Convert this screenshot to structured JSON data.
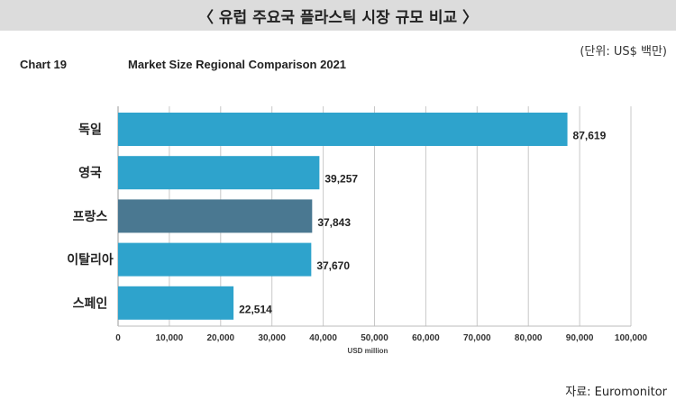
{
  "header": {
    "title": "〈 유럽 주요국 플라스틱 시장 규모 비교 〉"
  },
  "unit_note": "(단위: US$ 백만)",
  "chart_label": "Chart 19",
  "source": "자료: Euromonitor",
  "colors": {
    "bar": "#2ea3cc",
    "bar_highlight": "#4a7891",
    "header_bg": "#dcdcdc",
    "grid": "#c8c8c8"
  },
  "chart_data": {
    "type": "bar",
    "orientation": "horizontal",
    "title": "Market Size Regional Comparison 2021",
    "xlabel": "USD million",
    "ylabel": "",
    "xlim": [
      0,
      100000
    ],
    "grid": true,
    "categories": [
      "독일",
      "영국",
      "프랑스",
      "이탈리아",
      "스페인"
    ],
    "values": [
      87619,
      39257,
      37843,
      37670,
      22514
    ],
    "value_labels": [
      "87,619",
      "39,257",
      "37,843",
      "37,670",
      "22,514"
    ],
    "highlight_index": 2,
    "ticks": [
      0,
      10000,
      20000,
      30000,
      40000,
      50000,
      60000,
      70000,
      80000,
      90000,
      100000
    ],
    "tick_labels": [
      "0",
      "10,000",
      "20,000",
      "30,000",
      "40,000",
      "50,000",
      "60,000",
      "70,000",
      "80,000",
      "90,000",
      "100,000"
    ]
  }
}
